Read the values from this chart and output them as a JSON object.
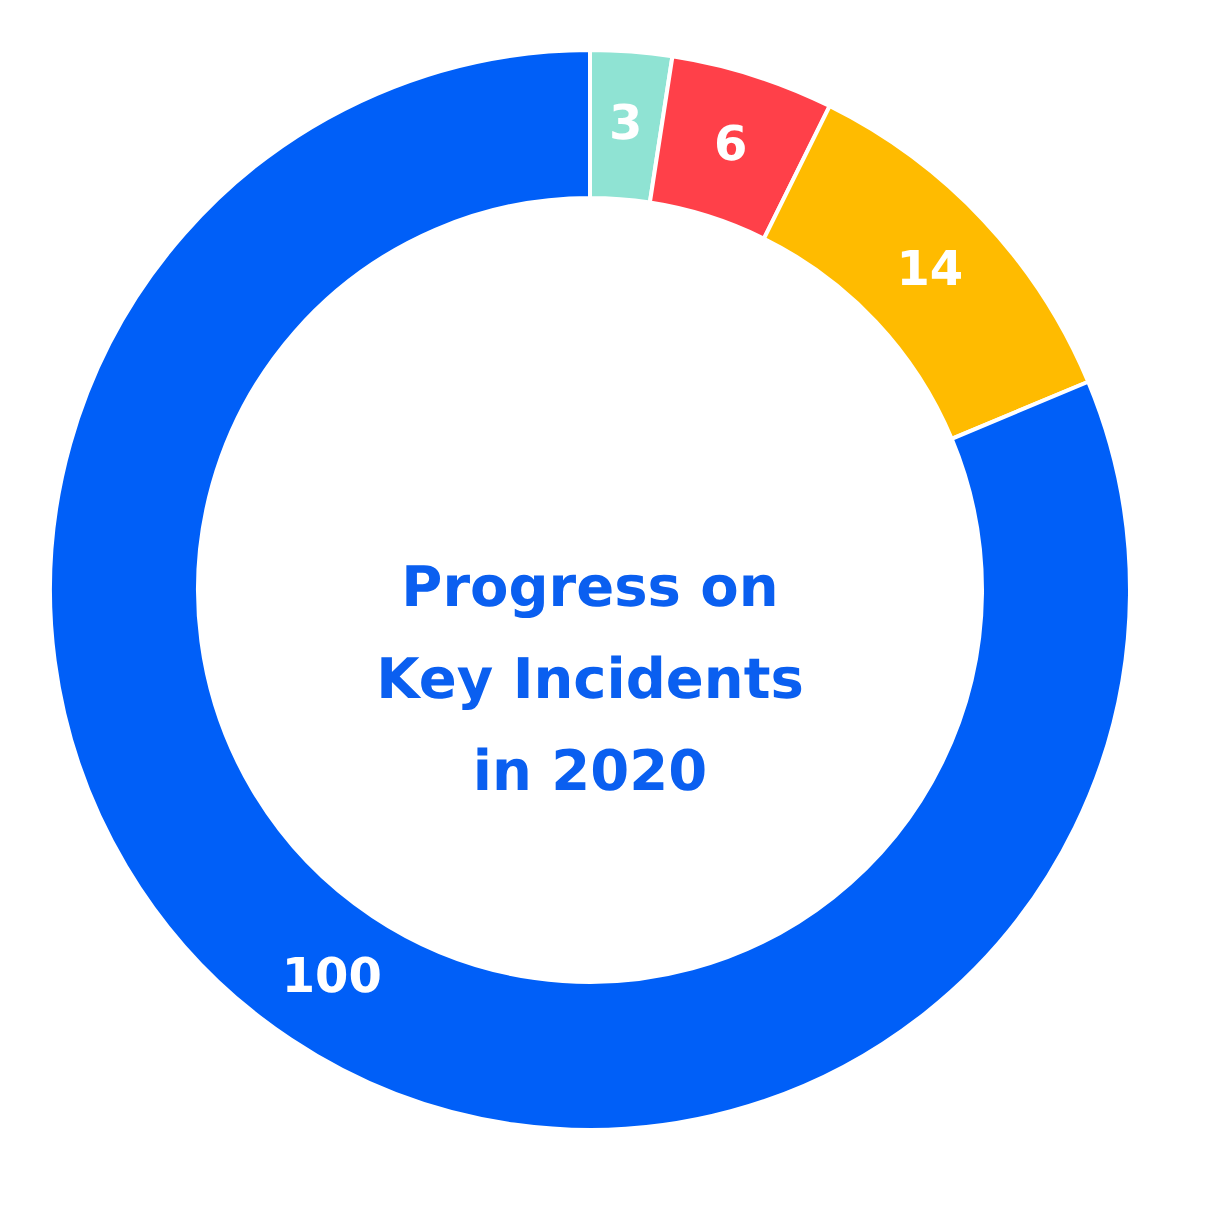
{
  "chart_data": {
    "type": "donut",
    "title": "Progress on Key Incidents in 2020",
    "categories": [
      null,
      null,
      null,
      null
    ],
    "values": [
      3,
      6,
      14,
      100
    ],
    "colors": [
      "#8fe3d3",
      "#ff4049",
      "#ffbb00",
      "#005ff8"
    ],
    "data_labels": true,
    "legend": false
  }
}
